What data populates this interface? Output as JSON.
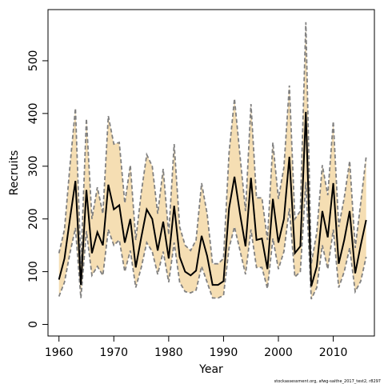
{
  "chart_data": {
    "type": "line",
    "xlabel": "Year",
    "ylabel": "Recruits",
    "footnote": "stockassessment.org, afwg-saithe_2017_test2, r8297",
    "xlim": [
      1958,
      2017.5
    ],
    "ylim": [
      -22,
      597
    ],
    "x_ticks": [
      1960,
      1970,
      1980,
      1990,
      2000,
      2010
    ],
    "y_ticks": [
      0,
      100,
      200,
      300,
      400,
      500
    ],
    "colors": {
      "band": "#F5DEB3",
      "estimate": "#000000",
      "bounds": "#808080"
    },
    "series": [
      {
        "x": [
          1960,
          1961,
          1962,
          1963,
          1964,
          1965,
          1966,
          1967,
          1968,
          1969,
          1970,
          1971,
          1972,
          1973,
          1974,
          1975,
          1976,
          1977,
          1978,
          1979,
          1980,
          1981,
          1982,
          1983,
          1984,
          1985,
          1986,
          1987,
          1988,
          1989,
          1990,
          1991,
          1992,
          1993,
          1994,
          1995,
          1996,
          1997,
          1998,
          1999,
          2000,
          2001,
          2002,
          2003,
          2004,
          2005,
          2006,
          2007,
          2008,
          2009,
          2010,
          2011,
          2012,
          2013,
          2014,
          2015,
          2016
        ],
        "estimate": [
          85,
          125,
          200,
          272,
          75,
          255,
          135,
          175,
          150,
          265,
          218,
          226,
          155,
          200,
          108,
          165,
          218,
          200,
          140,
          195,
          125,
          225,
          128,
          100,
          93,
          102,
          168,
          130,
          75,
          75,
          82,
          220,
          280,
          210,
          148,
          278,
          160,
          163,
          105,
          238,
          155,
          200,
          318,
          135,
          148,
          403,
          72,
          110,
          215,
          165,
          268,
          115,
          160,
          215,
          97,
          150,
          198
        ],
        "lower": [
          53,
          80,
          135,
          183,
          50,
          177,
          93,
          110,
          93,
          180,
          150,
          160,
          100,
          140,
          70,
          108,
          155,
          138,
          95,
          138,
          80,
          155,
          80,
          62,
          60,
          65,
          110,
          80,
          50,
          50,
          55,
          145,
          185,
          140,
          95,
          180,
          108,
          108,
          68,
          163,
          105,
          138,
          220,
          90,
          100,
          270,
          48,
          70,
          150,
          105,
          180,
          70,
          100,
          145,
          62,
          82,
          128
        ],
        "upper": [
          135,
          180,
          300,
          410,
          115,
          390,
          200,
          260,
          210,
          395,
          342,
          345,
          230,
          302,
          160,
          250,
          322,
          300,
          210,
          295,
          170,
          342,
          185,
          150,
          140,
          160,
          268,
          210,
          115,
          115,
          125,
          325,
          428,
          320,
          215,
          418,
          240,
          240,
          160,
          345,
          238,
          298,
          453,
          200,
          215,
          573,
          115,
          175,
          302,
          245,
          385,
          185,
          240,
          310,
          145,
          230,
          318
        ]
      }
    ]
  }
}
